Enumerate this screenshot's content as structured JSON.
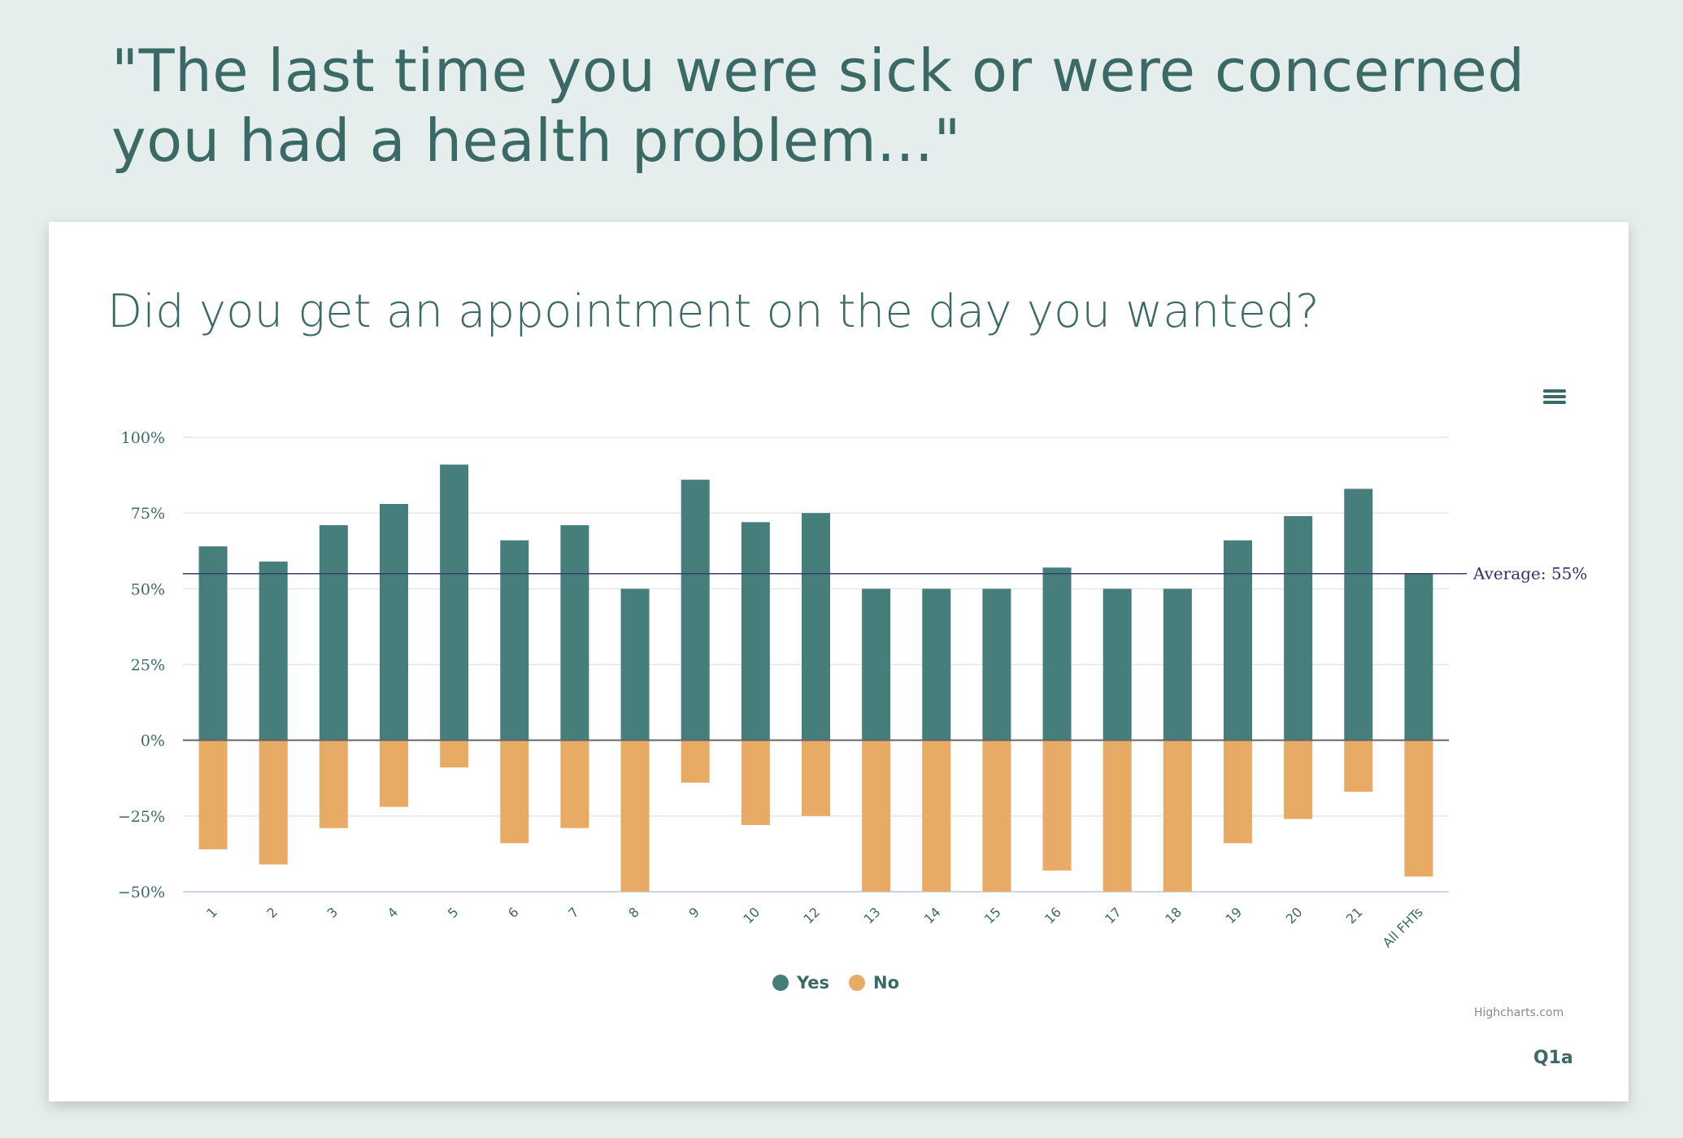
{
  "page": {
    "heading": "\"The last time you were sick or were concerned you had a health problem...\""
  },
  "chart_data": {
    "type": "bar",
    "title": "Did you get an appointment on the day you wanted?",
    "categories": [
      "1",
      "2",
      "3",
      "4",
      "5",
      "6",
      "7",
      "8",
      "9",
      "10",
      "12",
      "13",
      "14",
      "15",
      "16",
      "17",
      "18",
      "19",
      "20",
      "21",
      "All FHTs"
    ],
    "series": [
      {
        "name": "Yes",
        "color": "#467e7b",
        "values": [
          64,
          59,
          71,
          78,
          91,
          66,
          71,
          50,
          86,
          72,
          75,
          50,
          50,
          50,
          57,
          50,
          50,
          66,
          74,
          83,
          55
        ]
      },
      {
        "name": "No",
        "color": "#e7ab66",
        "values": [
          -36,
          -41,
          -29,
          -22,
          -9,
          -34,
          -29,
          -50,
          -14,
          -28,
          -25,
          -50,
          -50,
          -50,
          -43,
          -50,
          -50,
          -34,
          -26,
          -17,
          -45
        ]
      }
    ],
    "ylim": [
      -50,
      100
    ],
    "yticks": [
      100,
      75,
      50,
      25,
      0,
      -25,
      -50
    ],
    "ytick_labels": [
      "100%",
      "75%",
      "50%",
      "25%",
      "0%",
      "−25%",
      "−50%"
    ],
    "plot_line": {
      "value": 55,
      "label": "Average: 55%"
    },
    "legend": [
      "Yes",
      "No"
    ],
    "xlabel": "",
    "ylabel": ""
  },
  "credits": "Highcharts.com",
  "question_code": "Q1a",
  "menu_icon": "hamburger-menu-icon"
}
